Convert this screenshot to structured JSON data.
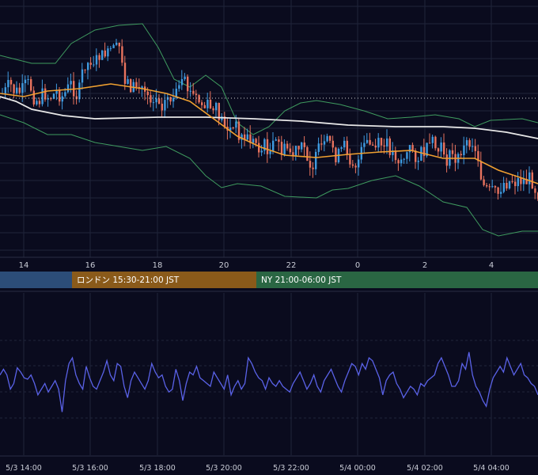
{
  "colors": {
    "background": "#0a0b1e",
    "grid": "#20243a",
    "candle_up": "#3f9be0",
    "candle_down": "#e8735e",
    "bollinger": "#3f9b5f",
    "ma_short": "#f0a030",
    "ma_long": "#e8e8e8",
    "oscillator": "#5a62e8",
    "session_tokyo": "#2c4d78",
    "session_london": "#8a5a1a",
    "session_ny": "#2a6643"
  },
  "chart_data": [
    {
      "type": "candlestick",
      "title": "",
      "overlays": [
        "bollinger-bands",
        "moving-average-short",
        "moving-average-long",
        "previous-high-dotted-line"
      ],
      "x_ticks": [
        "14",
        "16",
        "18",
        "20",
        "22",
        "0",
        "2",
        "4"
      ],
      "grid": true,
      "legend": "none",
      "ylim": [
        0,
        330
      ],
      "series": {
        "ma_long": [
          [
            0,
            122
          ],
          [
            20,
            128
          ],
          [
            40,
            138
          ],
          [
            80,
            146
          ],
          [
            120,
            150
          ],
          [
            160,
            149
          ],
          [
            200,
            148
          ],
          [
            260,
            148
          ],
          [
            320,
            150
          ],
          [
            380,
            153
          ],
          [
            440,
            158
          ],
          [
            500,
            160
          ],
          [
            560,
            160
          ],
          [
            600,
            162
          ],
          [
            640,
            167
          ],
          [
            680,
            175
          ]
        ],
        "ma_short": [
          [
            0,
            118
          ],
          [
            30,
            122
          ],
          [
            60,
            115
          ],
          [
            100,
            112
          ],
          [
            140,
            106
          ],
          [
            180,
            112
          ],
          [
            210,
            118
          ],
          [
            240,
            128
          ],
          [
            270,
            150
          ],
          [
            300,
            172
          ],
          [
            330,
            186
          ],
          [
            360,
            196
          ],
          [
            400,
            199
          ],
          [
            440,
            195
          ],
          [
            480,
            192
          ],
          [
            520,
            190
          ],
          [
            560,
            200
          ],
          [
            600,
            200
          ],
          [
            630,
            215
          ],
          [
            660,
            225
          ],
          [
            680,
            232
          ]
        ],
        "bb_upper": [
          [
            0,
            70
          ],
          [
            40,
            80
          ],
          [
            70,
            80
          ],
          [
            90,
            55
          ],
          [
            120,
            38
          ],
          [
            150,
            32
          ],
          [
            180,
            30
          ],
          [
            200,
            60
          ],
          [
            220,
            100
          ],
          [
            240,
            110
          ],
          [
            260,
            95
          ],
          [
            280,
            110
          ],
          [
            300,
            155
          ],
          [
            320,
            170
          ],
          [
            340,
            160
          ],
          [
            360,
            140
          ],
          [
            380,
            130
          ],
          [
            400,
            127
          ],
          [
            430,
            132
          ],
          [
            460,
            140
          ],
          [
            490,
            150
          ],
          [
            520,
            148
          ],
          [
            550,
            145
          ],
          [
            580,
            150
          ],
          [
            600,
            160
          ],
          [
            620,
            152
          ],
          [
            660,
            150
          ],
          [
            680,
            155
          ]
        ],
        "bb_lower": [
          [
            0,
            145
          ],
          [
            30,
            155
          ],
          [
            60,
            170
          ],
          [
            90,
            170
          ],
          [
            120,
            180
          ],
          [
            150,
            185
          ],
          [
            180,
            190
          ],
          [
            210,
            185
          ],
          [
            240,
            200
          ],
          [
            260,
            222
          ],
          [
            280,
            237
          ],
          [
            300,
            232
          ],
          [
            330,
            235
          ],
          [
            360,
            248
          ],
          [
            400,
            250
          ],
          [
            420,
            240
          ],
          [
            440,
            238
          ],
          [
            470,
            228
          ],
          [
            500,
            222
          ],
          [
            530,
            235
          ],
          [
            560,
            255
          ],
          [
            590,
            262
          ],
          [
            610,
            290
          ],
          [
            630,
            298
          ],
          [
            660,
            292
          ],
          [
            680,
            292
          ]
        ],
        "previous_high_y": 124
      }
    },
    {
      "type": "line",
      "title": "",
      "x_ticks": [
        "5/3 14:00",
        "5/3 16:00",
        "5/3 18:00",
        "5/3 20:00",
        "5/3 22:00",
        "5/4 00:00",
        "5/4 02:00",
        "5/4 04:00"
      ],
      "grid": true,
      "legend": "none",
      "ylim": [
        0,
        100
      ],
      "values": [
        48,
        52,
        48,
        38,
        42,
        53,
        50,
        46,
        45,
        48,
        42,
        34,
        38,
        42,
        36,
        40,
        44,
        38,
        22,
        44,
        56,
        60,
        48,
        42,
        38,
        54,
        46,
        40,
        38,
        44,
        50,
        58,
        48,
        44,
        56,
        54,
        40,
        32,
        44,
        50,
        46,
        42,
        38,
        44,
        56,
        50,
        46,
        48,
        40,
        36,
        38,
        52,
        44,
        30,
        42,
        50,
        48,
        54,
        46,
        44,
        42,
        40,
        50,
        46,
        42,
        38,
        48,
        34,
        40,
        44,
        38,
        42,
        60,
        56,
        50,
        46,
        44,
        38,
        46,
        42,
        40,
        44,
        40,
        38,
        36,
        42,
        46,
        50,
        44,
        38,
        42,
        48,
        40,
        36,
        44,
        48,
        52,
        46,
        40,
        36,
        44,
        50,
        56,
        54,
        48,
        56,
        52,
        60,
        58,
        52,
        46,
        34,
        44,
        48,
        50,
        42,
        38,
        32,
        36,
        40,
        38,
        34,
        42,
        40,
        44,
        46,
        48,
        56,
        60,
        54,
        48,
        40,
        40,
        44,
        56,
        52,
        64,
        48,
        40,
        36,
        30,
        26,
        38,
        46,
        50,
        54,
        50,
        60,
        54,
        48,
        52,
        56,
        48,
        46,
        42,
        40,
        34
      ]
    }
  ],
  "sessions": [
    {
      "label": ""
    },
    {
      "label": "ロンドン 15:30-21:00 JST"
    },
    {
      "label": "NY 21:00-06:00 JST"
    }
  ]
}
